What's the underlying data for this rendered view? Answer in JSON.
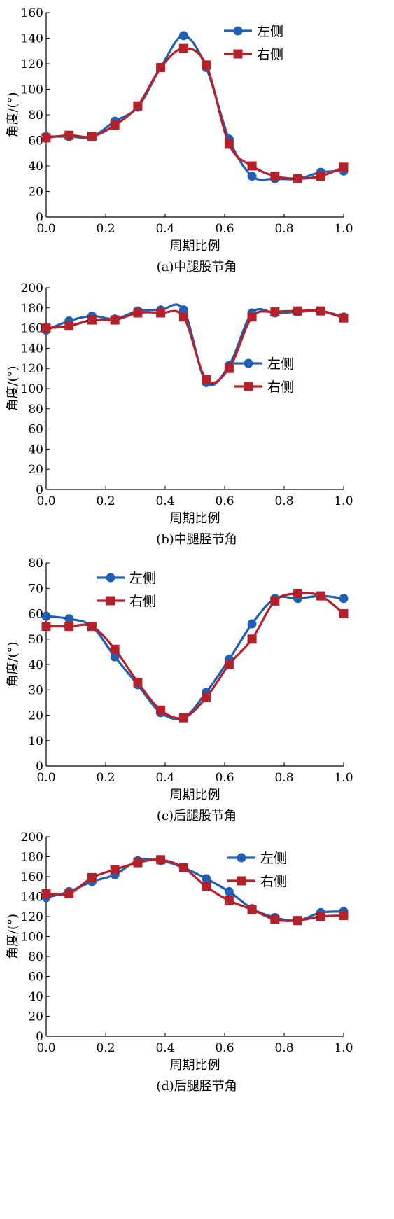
{
  "chart_data": [
    {
      "type": "line",
      "caption": "(a)中腿股节角",
      "xlabel": "周期比例",
      "ylabel": "角度/(°)",
      "xlim": [
        0,
        1
      ],
      "ylim": [
        0,
        160
      ],
      "xticks": [
        "0.0",
        "0.2",
        "0.4",
        "0.6",
        "0.8",
        "1.0"
      ],
      "yticks": [
        0,
        20,
        40,
        60,
        80,
        100,
        120,
        140,
        160
      ],
      "legend_position": "top-right",
      "x": [
        0,
        0.077,
        0.154,
        0.231,
        0.308,
        0.385,
        0.462,
        0.538,
        0.615,
        0.692,
        0.769,
        0.846,
        0.923,
        1.0
      ],
      "series": [
        {
          "name": "左侧",
          "color": "#1f5fb4",
          "marker": "circle",
          "values": [
            63,
            63,
            63,
            75,
            86,
            117,
            142,
            117,
            61,
            32,
            30,
            30,
            35,
            36
          ]
        },
        {
          "name": "右侧",
          "color": "#b5212a",
          "marker": "square",
          "values": [
            62,
            64,
            63,
            72,
            87,
            117,
            132,
            119,
            57,
            40,
            32,
            30,
            32,
            39
          ]
        }
      ]
    },
    {
      "type": "line",
      "caption": "(b)中腿胫节角",
      "xlabel": "周期比例",
      "ylabel": "角度/(°)",
      "xlim": [
        0,
        1
      ],
      "ylim": [
        0,
        200
      ],
      "xticks": [
        "0.0",
        "0.2",
        "0.4",
        "0.6",
        "0.8",
        "1.0"
      ],
      "yticks": [
        0,
        20,
        40,
        60,
        80,
        100,
        120,
        140,
        160,
        180,
        200
      ],
      "legend_position": "center-right",
      "x": [
        0,
        0.077,
        0.154,
        0.231,
        0.308,
        0.385,
        0.462,
        0.538,
        0.615,
        0.692,
        0.769,
        0.846,
        0.923,
        1.0
      ],
      "series": [
        {
          "name": "左侧",
          "color": "#1f5fb4",
          "marker": "circle",
          "values": [
            158,
            167,
            172,
            169,
            177,
            178,
            178,
            106,
            123,
            175,
            175,
            176,
            177,
            171
          ]
        },
        {
          "name": "右侧",
          "color": "#b5212a",
          "marker": "square",
          "values": [
            160,
            162,
            168,
            168,
            175,
            175,
            171,
            109,
            120,
            171,
            176,
            177,
            177,
            170
          ]
        }
      ]
    },
    {
      "type": "line",
      "caption": "(c)后腿股节角",
      "xlabel": "周期比例",
      "ylabel": "角度/(°)",
      "xlim": [
        0,
        1
      ],
      "ylim": [
        0,
        80
      ],
      "xticks": [
        "0.0",
        "0.2",
        "0.4",
        "0.6",
        "0.8",
        "1.0"
      ],
      "yticks": [
        0,
        10,
        20,
        30,
        40,
        50,
        60,
        70,
        80
      ],
      "legend_position": "top-left",
      "x": [
        0,
        0.077,
        0.154,
        0.231,
        0.308,
        0.385,
        0.462,
        0.538,
        0.615,
        0.692,
        0.769,
        0.846,
        0.923,
        1.0
      ],
      "series": [
        {
          "name": "左侧",
          "color": "#1f5fb4",
          "marker": "circle",
          "values": [
            59,
            58,
            55,
            43,
            32,
            21,
            19,
            29,
            42,
            56,
            66,
            66,
            67,
            66
          ]
        },
        {
          "name": "右侧",
          "color": "#b5212a",
          "marker": "square",
          "values": [
            55,
            55,
            55,
            46,
            33,
            22,
            19,
            27,
            40,
            50,
            65,
            68,
            67,
            60
          ]
        }
      ]
    },
    {
      "type": "line",
      "caption": "(d)后腿胫节角",
      "xlabel": "周期比例",
      "ylabel": "角度/(°)",
      "xlim": [
        0,
        1
      ],
      "ylim": [
        0,
        200
      ],
      "xticks": [
        "0.0",
        "0.2",
        "0.4",
        "0.6",
        "0.8",
        "1.0"
      ],
      "yticks": [
        0,
        20,
        40,
        60,
        80,
        100,
        120,
        140,
        160,
        180,
        200
      ],
      "legend_position": "top-right",
      "x": [
        0,
        0.077,
        0.154,
        0.231,
        0.308,
        0.385,
        0.462,
        0.538,
        0.615,
        0.692,
        0.769,
        0.846,
        0.923,
        1.0
      ],
      "series": [
        {
          "name": "左侧",
          "color": "#1f5fb4",
          "marker": "circle",
          "values": [
            139,
            145,
            155,
            162,
            176,
            176,
            169,
            158,
            145,
            128,
            119,
            116,
            124,
            125
          ]
        },
        {
          "name": "右侧",
          "color": "#b5212a",
          "marker": "square",
          "values": [
            143,
            143,
            159,
            167,
            174,
            177,
            169,
            150,
            136,
            127,
            117,
            116,
            120,
            121
          ]
        }
      ]
    }
  ]
}
